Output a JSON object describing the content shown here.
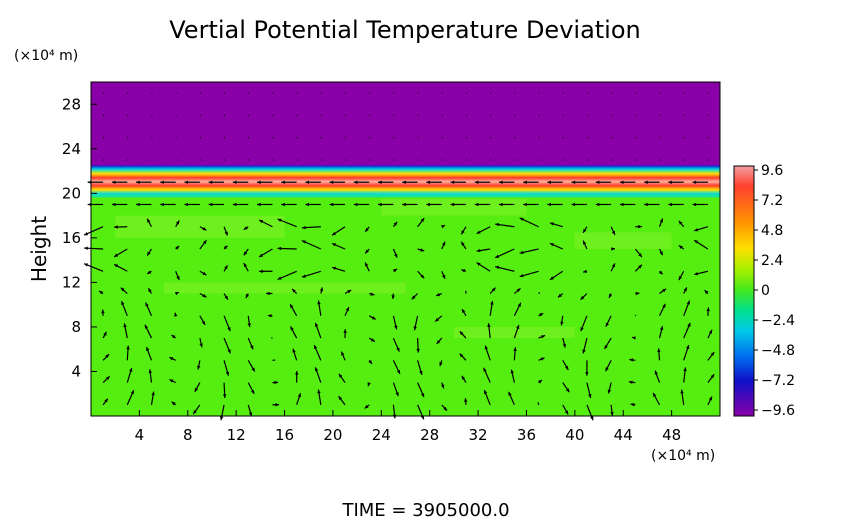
{
  "chart_data": {
    "type": "heatmap",
    "title": "Vertial Potential Temperature Deviation",
    "ylabel": "Height",
    "y_unit_label": "(×10⁴ m)",
    "x_unit_label": "(×10⁴ m)",
    "footer": "TIME  =  3905000.0",
    "xlim": [
      0,
      52
    ],
    "ylim": [
      0,
      30
    ],
    "x_ticks": [
      4,
      8,
      12,
      16,
      20,
      24,
      28,
      32,
      36,
      40,
      44,
      48
    ],
    "y_ticks": [
      4,
      8,
      12,
      16,
      20,
      24,
      28
    ],
    "colorbar_ticks": [
      "9.6",
      "7.2",
      "4.8",
      "2.4",
      "0",
      "−2.4",
      "−4.8",
      "−7.2",
      "−9.6"
    ],
    "colorbar_range": [
      -9.6,
      9.6
    ],
    "colors": {
      "purple": "#8a00a8",
      "green": "#55ee10",
      "red": "#ff3a2a",
      "cyan": "#00dcdc",
      "blue": "#1018d8"
    },
    "layers": [
      {
        "y0": 22.5,
        "y1": 30,
        "value": "purple"
      },
      {
        "y0": 22.0,
        "y1": 22.5,
        "value": "blue"
      },
      {
        "y0": 21.6,
        "y1": 22.0,
        "value": "cyan"
      },
      {
        "y0": 20.6,
        "y1": 21.6,
        "value": "red"
      },
      {
        "y0": 20.0,
        "y1": 20.6,
        "value": "cyan"
      },
      {
        "y0": 0,
        "y1": 20.0,
        "value": "green"
      }
    ]
  }
}
